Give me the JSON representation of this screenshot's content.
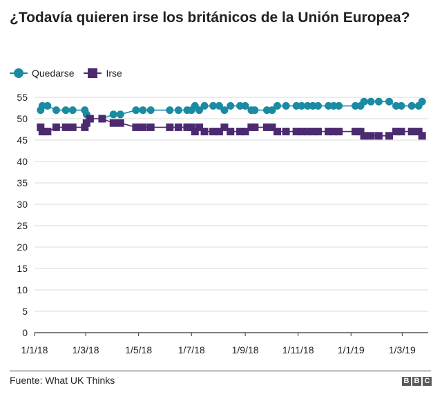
{
  "title": "¿Todavía quieren irse los británicos de la Unión Europea?",
  "source": "Fuente: What UK Thinks",
  "logo_letters": [
    "B",
    "B",
    "C"
  ],
  "colors": {
    "quedarse": "#1a8ba2",
    "irse": "#4b2a70",
    "grid": "#d9d9d9",
    "axis": "#333333"
  },
  "chart_data": {
    "type": "line",
    "title": "¿Todavía quieren irse los británicos de la Unión Europea?",
    "xlabel": "",
    "ylabel": "",
    "ylim": [
      0,
      55
    ],
    "yticks": [
      0,
      5,
      10,
      15,
      20,
      25,
      30,
      35,
      40,
      45,
      50,
      55
    ],
    "xticks": [
      "1/1/18",
      "1/3/18",
      "1/5/18",
      "1/7/18",
      "1/9/18",
      "1/11/18",
      "1/1/19",
      "1/3/19"
    ],
    "x_range": [
      "2018-01-01",
      "2019-03-31"
    ],
    "grid": true,
    "legend": "top-left",
    "series": [
      {
        "name": "Quedarse",
        "marker": "circle",
        "points": [
          [
            "2018-01-08",
            52
          ],
          [
            "2018-01-10",
            53
          ],
          [
            "2018-01-16",
            53
          ],
          [
            "2018-01-26",
            52
          ],
          [
            "2018-02-06",
            52
          ],
          [
            "2018-02-14",
            52
          ],
          [
            "2018-02-28",
            52
          ],
          [
            "2018-03-02",
            51
          ],
          [
            "2018-03-06",
            50
          ],
          [
            "2018-03-20",
            50
          ],
          [
            "2018-04-02",
            51
          ],
          [
            "2018-04-10",
            51
          ],
          [
            "2018-04-28",
            52
          ],
          [
            "2018-05-06",
            52
          ],
          [
            "2018-05-15",
            52
          ],
          [
            "2018-06-06",
            52
          ],
          [
            "2018-06-16",
            52
          ],
          [
            "2018-06-26",
            52
          ],
          [
            "2018-07-01",
            52
          ],
          [
            "2018-07-05",
            53
          ],
          [
            "2018-07-10",
            52
          ],
          [
            "2018-07-16",
            53
          ],
          [
            "2018-07-26",
            53
          ],
          [
            "2018-08-02",
            53
          ],
          [
            "2018-08-08",
            52
          ],
          [
            "2018-08-15",
            53
          ],
          [
            "2018-08-26",
            53
          ],
          [
            "2018-09-01",
            53
          ],
          [
            "2018-09-08",
            52
          ],
          [
            "2018-09-12",
            52
          ],
          [
            "2018-09-26",
            52
          ],
          [
            "2018-10-02",
            52
          ],
          [
            "2018-10-08",
            53
          ],
          [
            "2018-10-18",
            53
          ],
          [
            "2018-10-30",
            53
          ],
          [
            "2018-11-05",
            53
          ],
          [
            "2018-11-12",
            53
          ],
          [
            "2018-11-18",
            53
          ],
          [
            "2018-11-24",
            53
          ],
          [
            "2018-12-06",
            53
          ],
          [
            "2018-12-12",
            53
          ],
          [
            "2018-12-18",
            53
          ],
          [
            "2019-01-06",
            53
          ],
          [
            "2019-01-12",
            53
          ],
          [
            "2019-01-16",
            54
          ],
          [
            "2019-01-24",
            54
          ],
          [
            "2019-02-02",
            54
          ],
          [
            "2019-02-14",
            54
          ],
          [
            "2019-02-22",
            53
          ],
          [
            "2019-02-28",
            53
          ],
          [
            "2019-03-12",
            53
          ],
          [
            "2019-03-20",
            53
          ],
          [
            "2019-03-24",
            54
          ]
        ]
      },
      {
        "name": "Irse",
        "marker": "square",
        "points": [
          [
            "2018-01-08",
            48
          ],
          [
            "2018-01-10",
            47
          ],
          [
            "2018-01-16",
            47
          ],
          [
            "2018-01-26",
            48
          ],
          [
            "2018-02-06",
            48
          ],
          [
            "2018-02-14",
            48
          ],
          [
            "2018-02-28",
            48
          ],
          [
            "2018-03-02",
            49
          ],
          [
            "2018-03-06",
            50
          ],
          [
            "2018-03-20",
            50
          ],
          [
            "2018-04-02",
            49
          ],
          [
            "2018-04-10",
            49
          ],
          [
            "2018-04-28",
            48
          ],
          [
            "2018-05-06",
            48
          ],
          [
            "2018-05-15",
            48
          ],
          [
            "2018-06-06",
            48
          ],
          [
            "2018-06-16",
            48
          ],
          [
            "2018-06-26",
            48
          ],
          [
            "2018-07-01",
            48
          ],
          [
            "2018-07-05",
            47
          ],
          [
            "2018-07-10",
            48
          ],
          [
            "2018-07-16",
            47
          ],
          [
            "2018-07-26",
            47
          ],
          [
            "2018-08-02",
            47
          ],
          [
            "2018-08-08",
            48
          ],
          [
            "2018-08-15",
            47
          ],
          [
            "2018-08-26",
            47
          ],
          [
            "2018-09-01",
            47
          ],
          [
            "2018-09-08",
            48
          ],
          [
            "2018-09-12",
            48
          ],
          [
            "2018-09-26",
            48
          ],
          [
            "2018-10-02",
            48
          ],
          [
            "2018-10-08",
            47
          ],
          [
            "2018-10-18",
            47
          ],
          [
            "2018-10-30",
            47
          ],
          [
            "2018-11-05",
            47
          ],
          [
            "2018-11-12",
            47
          ],
          [
            "2018-11-18",
            47
          ],
          [
            "2018-11-24",
            47
          ],
          [
            "2018-12-06",
            47
          ],
          [
            "2018-12-12",
            47
          ],
          [
            "2018-12-18",
            47
          ],
          [
            "2019-01-06",
            47
          ],
          [
            "2019-01-12",
            47
          ],
          [
            "2019-01-16",
            46
          ],
          [
            "2019-01-24",
            46
          ],
          [
            "2019-02-02",
            46
          ],
          [
            "2019-02-14",
            46
          ],
          [
            "2019-02-22",
            47
          ],
          [
            "2019-02-28",
            47
          ],
          [
            "2019-03-12",
            47
          ],
          [
            "2019-03-20",
            47
          ],
          [
            "2019-03-24",
            46
          ]
        ]
      }
    ]
  }
}
